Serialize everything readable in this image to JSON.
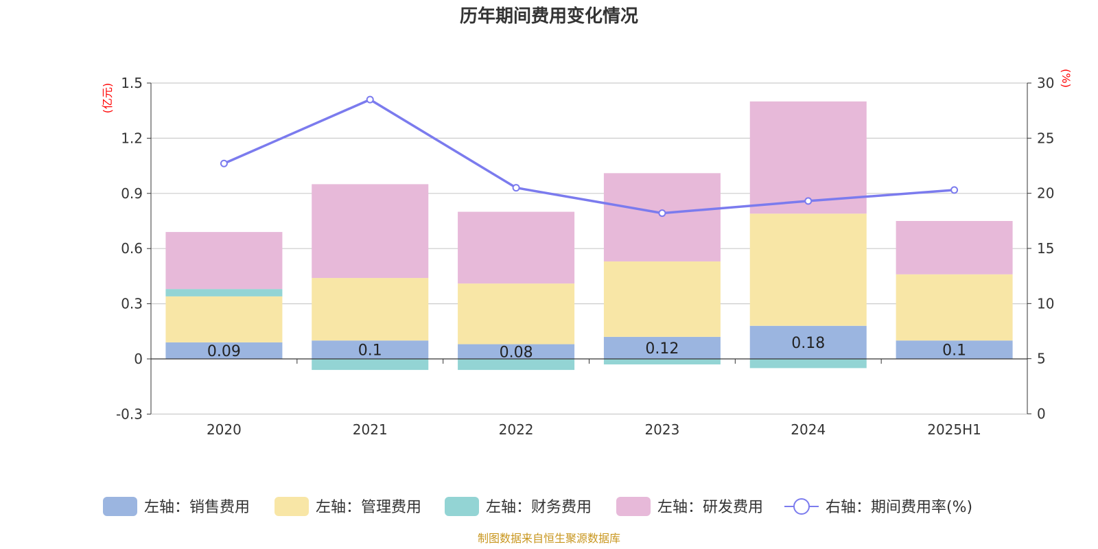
{
  "chart_data": {
    "type": "bar",
    "title": "历年期间费用变化情况",
    "categories": [
      "2020",
      "2021",
      "2022",
      "2023",
      "2024",
      "2025H1"
    ],
    "left_axis": {
      "unit": "(亿元)",
      "ylim": [
        -0.3,
        1.5
      ],
      "ticks": [
        "1.5",
        "1.2",
        "0.9",
        "0.6",
        "0.3",
        "0",
        "-0.3"
      ]
    },
    "right_axis": {
      "unit": "(%)",
      "ylim": [
        0,
        30
      ],
      "ticks": [
        "30",
        "25",
        "20",
        "15",
        "10",
        "5",
        "0"
      ]
    },
    "series": [
      {
        "name": "左轴：销售费用",
        "type": "bar",
        "axis": "left",
        "color": "#9bb5e0",
        "values": [
          0.09,
          0.1,
          0.08,
          0.12,
          0.18,
          0.1
        ],
        "labels": [
          "0.09",
          "0.1",
          "0.08",
          "0.12",
          "0.18",
          "0.1"
        ]
      },
      {
        "name": "左轴：管理费用",
        "type": "bar",
        "axis": "left",
        "color": "#f8e6a6",
        "values": [
          0.25,
          0.34,
          0.33,
          0.41,
          0.61,
          0.36
        ]
      },
      {
        "name": "左轴：财务费用",
        "type": "bar",
        "axis": "left",
        "color": "#93d4d4",
        "values": [
          0.04,
          -0.06,
          -0.06,
          -0.03,
          -0.05,
          0.0
        ]
      },
      {
        "name": "左轴：研发费用",
        "type": "bar",
        "axis": "left",
        "color": "#e7b9d9",
        "values": [
          0.31,
          0.51,
          0.39,
          0.48,
          0.61,
          0.29
        ]
      },
      {
        "name": "右轴：期间费用率(%)",
        "type": "line",
        "axis": "right",
        "color": "#7b7bee",
        "values": [
          22.7,
          28.5,
          20.5,
          18.2,
          19.3,
          20.3
        ]
      }
    ],
    "grid": true,
    "legend_position": "bottom"
  },
  "source": "制图数据来自恒生聚源数据库"
}
